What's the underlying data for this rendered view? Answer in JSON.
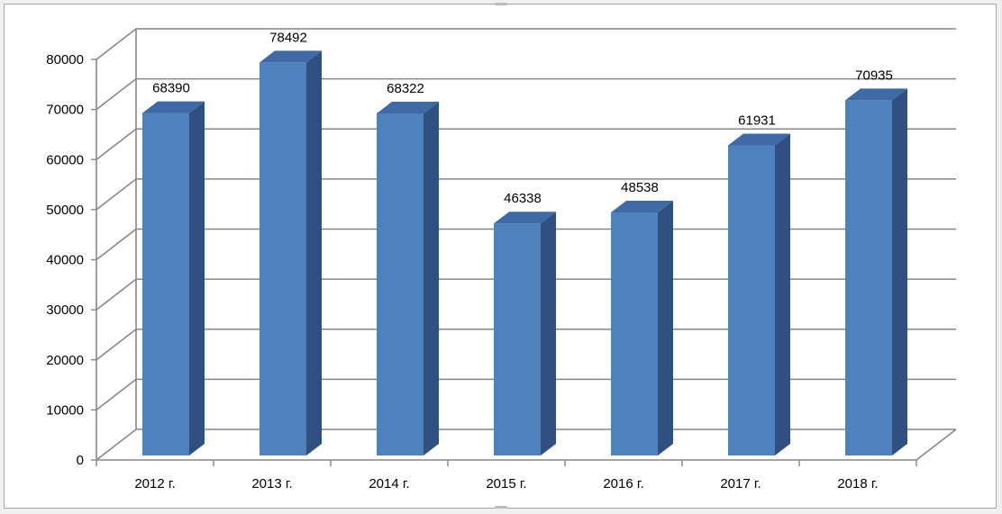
{
  "chart_data": {
    "type": "bar",
    "style": "3d-column",
    "categories": [
      "2012 г.",
      "2013 г.",
      "2014 г.",
      "2015 г.",
      "2016 г.",
      "2017 г.",
      "2018 г."
    ],
    "values": [
      68390,
      78492,
      68322,
      46338,
      48538,
      61931,
      70935
    ],
    "data_labels": [
      "68390",
      "78492",
      "68322",
      "46338",
      "48538",
      "61931",
      "70935"
    ],
    "y_ticks": [
      "0",
      "10000",
      "20000",
      "30000",
      "40000",
      "50000",
      "60000",
      "70000",
      "80000"
    ],
    "title": "",
    "xlabel": "",
    "ylabel": "",
    "ylim": [
      0,
      80000
    ],
    "grid": true,
    "legend": "none",
    "colors": {
      "bar_front": "#4f81bd",
      "bar_side": "#2f5081",
      "bar_top": "#3f6aa6",
      "grid": "#878787",
      "axis": "#878787"
    }
  }
}
